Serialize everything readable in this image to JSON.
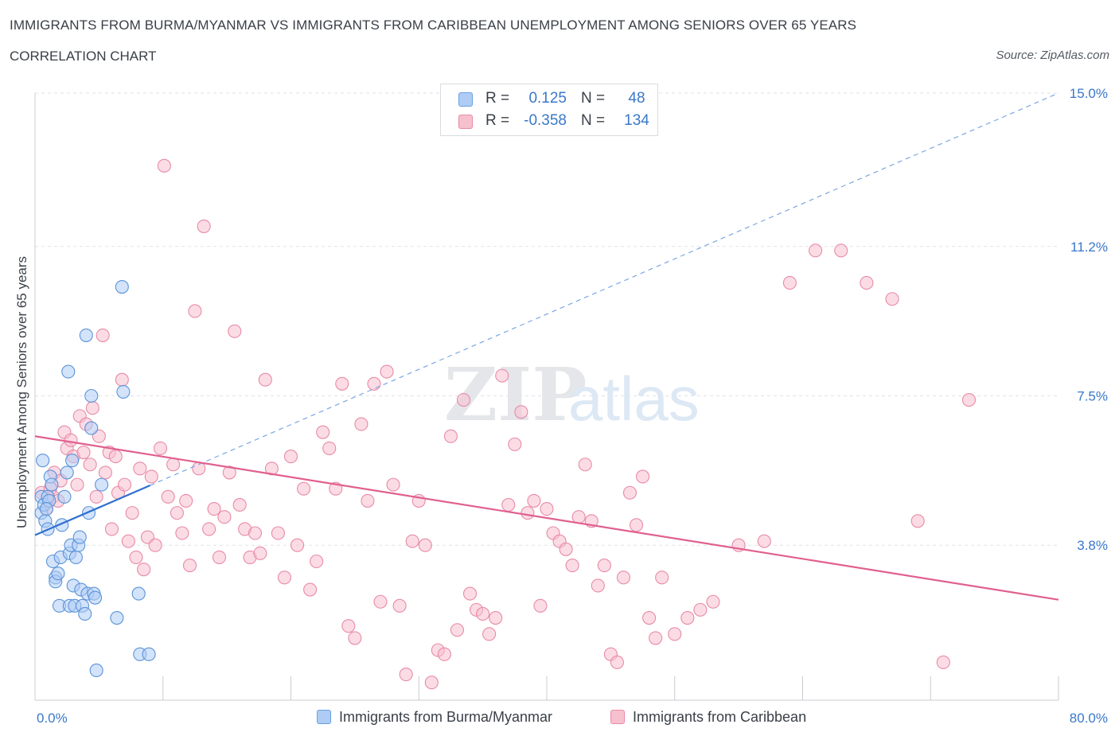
{
  "header": {
    "title": "IMMIGRANTS FROM BURMA/MYANMAR VS IMMIGRANTS FROM CARIBBEAN UNEMPLOYMENT AMONG SENIORS OVER 65 YEARS",
    "subtitle": "CORRELATION CHART",
    "source": "Source: ZipAtlas.com"
  },
  "watermark": {
    "zip": "ZIP",
    "atlas": "atlas"
  },
  "stats": [
    {
      "r_label": "R =",
      "r_value": "0.125",
      "n_label": "N =",
      "n_value": "48",
      "color": "#aeccf5"
    },
    {
      "r_label": "R =",
      "r_value": "-0.358",
      "n_label": "N =",
      "n_value": "134",
      "color": "#f7c0cf"
    }
  ],
  "legend": [
    {
      "label": "Immigrants from Burma/Myanmar",
      "color": "#aeccf5"
    },
    {
      "label": "Immigrants from Caribbean",
      "color": "#f7c0cf"
    }
  ],
  "chart_data": {
    "type": "scatter",
    "ylabel": "Unemployment Among Seniors over 65 years",
    "xlabel": "",
    "xlim": [
      0,
      80
    ],
    "ylim": [
      0,
      15
    ],
    "x_tick_labels": [
      {
        "value": 0,
        "label": "0.0%"
      },
      {
        "value": 80,
        "label": "80.0%"
      }
    ],
    "y_tick_labels": [
      {
        "value": 3.8,
        "label": "3.8%"
      },
      {
        "value": 7.5,
        "label": "7.5%"
      },
      {
        "value": 11.2,
        "label": "11.2%"
      },
      {
        "value": 15.0,
        "label": "15.0%"
      }
    ],
    "grid": true,
    "colors": {
      "blue_fill": "#aeccf5",
      "blue_stroke": "#5b93d8",
      "blue_line": "#2f6fcf",
      "pink_fill": "#f7c0cf",
      "pink_stroke": "#e88aa6",
      "pink_line": "#e0608f"
    },
    "series": [
      {
        "name": "Immigrants from Burma/Myanmar",
        "x": [
          0.5,
          0.5,
          0.6,
          0.7,
          0.8,
          1.0,
          1.0,
          1.1,
          1.2,
          1.3,
          1.4,
          1.6,
          1.6,
          1.8,
          1.9,
          2.0,
          2.1,
          2.3,
          2.5,
          2.6,
          2.7,
          2.7,
          2.8,
          2.9,
          3.0,
          3.1,
          3.2,
          3.4,
          3.5,
          3.6,
          3.7,
          3.9,
          4.0,
          4.1,
          4.2,
          4.4,
          4.4,
          4.6,
          4.7,
          4.8,
          5.2,
          6.4,
          6.8,
          6.9,
          8.1,
          8.2,
          8.9,
          0.9
        ],
        "y": [
          4.6,
          5.0,
          5.9,
          4.8,
          4.4,
          4.2,
          5.0,
          4.9,
          5.5,
          5.3,
          3.4,
          3.0,
          2.9,
          3.1,
          2.3,
          3.5,
          4.3,
          5.0,
          5.6,
          8.1,
          2.3,
          3.6,
          3.8,
          5.9,
          2.8,
          2.3,
          3.5,
          3.8,
          4.0,
          2.7,
          2.3,
          2.1,
          9.0,
          2.6,
          4.6,
          7.5,
          6.7,
          2.6,
          2.5,
          0.7,
          5.3,
          2.0,
          10.2,
          7.6,
          2.6,
          1.1,
          1.1,
          4.7
        ]
      },
      {
        "name": "Immigrants from Caribbean",
        "x": [
          0.5,
          0.9,
          1.2,
          1.4,
          1.5,
          1.8,
          2.0,
          2.3,
          2.5,
          2.8,
          3.0,
          3.3,
          3.5,
          3.8,
          4.0,
          4.3,
          4.5,
          4.8,
          5.0,
          5.3,
          5.5,
          5.8,
          6.0,
          6.3,
          6.5,
          6.8,
          7.0,
          7.3,
          7.6,
          7.9,
          8.2,
          8.5,
          8.8,
          9.1,
          9.4,
          9.8,
          10.1,
          10.4,
          10.8,
          11.1,
          11.5,
          11.8,
          12.1,
          12.5,
          12.8,
          13.2,
          13.6,
          14.0,
          14.4,
          14.8,
          15.2,
          15.6,
          16.0,
          16.4,
          16.8,
          17.2,
          17.6,
          18.0,
          18.5,
          19.0,
          19.5,
          20.0,
          20.5,
          21.0,
          21.5,
          22.0,
          22.5,
          23.0,
          23.5,
          24.0,
          24.5,
          25.0,
          25.5,
          26.0,
          26.5,
          27.0,
          27.5,
          28.0,
          28.5,
          29.0,
          29.5,
          30.0,
          30.5,
          31.0,
          31.5,
          32.0,
          32.5,
          33.0,
          33.5,
          34.0,
          34.5,
          35.0,
          35.5,
          36.0,
          36.5,
          37.0,
          37.5,
          38.0,
          38.5,
          39.0,
          39.5,
          40.0,
          40.5,
          41.0,
          41.5,
          42.0,
          42.5,
          43.0,
          43.5,
          44.0,
          44.5,
          45.0,
          45.5,
          46.0,
          46.5,
          47.0,
          47.5,
          48.0,
          48.5,
          49.0,
          50.0,
          51.0,
          52.0,
          53.0,
          55.0,
          57.0,
          59.0,
          61.0,
          63.0,
          65.0,
          67.0,
          69.0,
          71.0,
          73.0
        ],
        "y": [
          5.1,
          4.7,
          5.2,
          5.0,
          5.6,
          4.9,
          5.4,
          6.6,
          6.2,
          6.4,
          6.0,
          5.3,
          7.0,
          6.1,
          6.8,
          5.8,
          7.2,
          5.0,
          6.5,
          9.0,
          5.6,
          6.1,
          4.2,
          6.0,
          5.1,
          7.9,
          5.3,
          3.9,
          4.6,
          3.5,
          5.7,
          3.2,
          4.0,
          5.5,
          3.8,
          6.2,
          13.2,
          5.0,
          5.8,
          4.6,
          4.1,
          4.9,
          3.3,
          9.6,
          5.7,
          11.7,
          4.2,
          4.7,
          3.5,
          4.5,
          5.6,
          9.1,
          4.8,
          4.2,
          3.5,
          4.1,
          3.6,
          7.9,
          5.7,
          4.1,
          3.0,
          6.0,
          3.8,
          5.2,
          2.7,
          3.4,
          6.6,
          6.2,
          5.2,
          7.8,
          1.8,
          1.5,
          6.8,
          4.9,
          7.8,
          2.4,
          8.1,
          5.3,
          2.3,
          0.6,
          3.9,
          4.9,
          3.8,
          0.4,
          1.2,
          1.1,
          6.5,
          1.7,
          7.4,
          2.6,
          2.2,
          2.1,
          1.6,
          2.0,
          8.0,
          4.8,
          6.3,
          7.1,
          4.6,
          4.9,
          2.3,
          4.7,
          4.1,
          3.9,
          3.7,
          3.3,
          4.5,
          5.8,
          4.4,
          2.8,
          3.3,
          1.1,
          0.9,
          3.0,
          5.1,
          4.3,
          5.5,
          2.0,
          1.5,
          3.0,
          1.6,
          2.0,
          2.2,
          2.4,
          3.8,
          3.9,
          10.3,
          11.1,
          11.1,
          10.3,
          9.9,
          4.4,
          0.9,
          7.4
        ]
      }
    ],
    "trend_lines": [
      {
        "series": "Immigrants from Burma/Myanmar",
        "solid_x": [
          0,
          9
        ],
        "x": [
          0,
          80
        ],
        "y": [
          4.05,
          15.0
        ],
        "dash_beyond_solid": true
      },
      {
        "series": "Immigrants from Caribbean",
        "x": [
          0,
          80
        ],
        "y": [
          6.5,
          2.45
        ]
      }
    ]
  }
}
